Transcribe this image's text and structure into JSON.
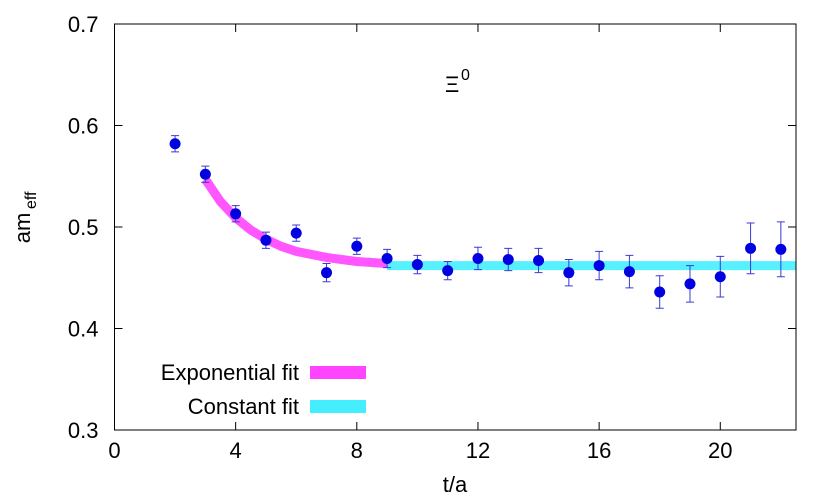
{
  "chart_data": {
    "type": "errorbar",
    "title": "Ξ",
    "title_superscript": "0",
    "x_label": "t/a",
    "y_label": "am",
    "y_label_subscript": "eff",
    "xlim": [
      0,
      22.5
    ],
    "ylim": [
      0.3,
      0.7
    ],
    "xticks": [
      0,
      4,
      8,
      12,
      16,
      20
    ],
    "yticks": [
      0.3,
      0.4,
      0.5,
      0.6,
      0.7
    ],
    "legend": "bottom-left",
    "points": {
      "color": "#0000e0",
      "error_color": "#3a3ad8",
      "x": [
        2,
        3,
        4,
        5,
        6,
        7,
        8,
        9,
        10,
        11,
        12,
        13,
        14,
        15,
        16,
        17,
        18,
        19,
        20,
        21,
        22
      ],
      "values": [
        0.582,
        0.552,
        0.513,
        0.487,
        0.494,
        0.455,
        0.481,
        0.469,
        0.463,
        0.457,
        0.469,
        0.468,
        0.467,
        0.455,
        0.462,
        0.456,
        0.436,
        0.444,
        0.451,
        0.479,
        0.478
      ],
      "errors": [
        0.008,
        0.008,
        0.008,
        0.008,
        0.008,
        0.009,
        0.008,
        0.009,
        0.009,
        0.009,
        0.011,
        0.011,
        0.012,
        0.013,
        0.014,
        0.016,
        0.016,
        0.018,
        0.02,
        0.025,
        0.027
      ]
    },
    "series": [
      {
        "name": "Exponential fit",
        "color": "#ff44ff",
        "x": [
          3,
          3.5,
          4,
          4.5,
          5,
          5.5,
          6,
          6.5,
          7,
          7.5,
          8,
          8.5,
          9
        ],
        "values": [
          0.547,
          0.525,
          0.509,
          0.497,
          0.488,
          0.481,
          0.476,
          0.473,
          0.47,
          0.468,
          0.466,
          0.465,
          0.464
        ]
      },
      {
        "name": "Constant fit",
        "color": "#44eeff",
        "x": [
          9,
          22.5
        ],
        "values": [
          0.462,
          0.462
        ]
      }
    ]
  }
}
